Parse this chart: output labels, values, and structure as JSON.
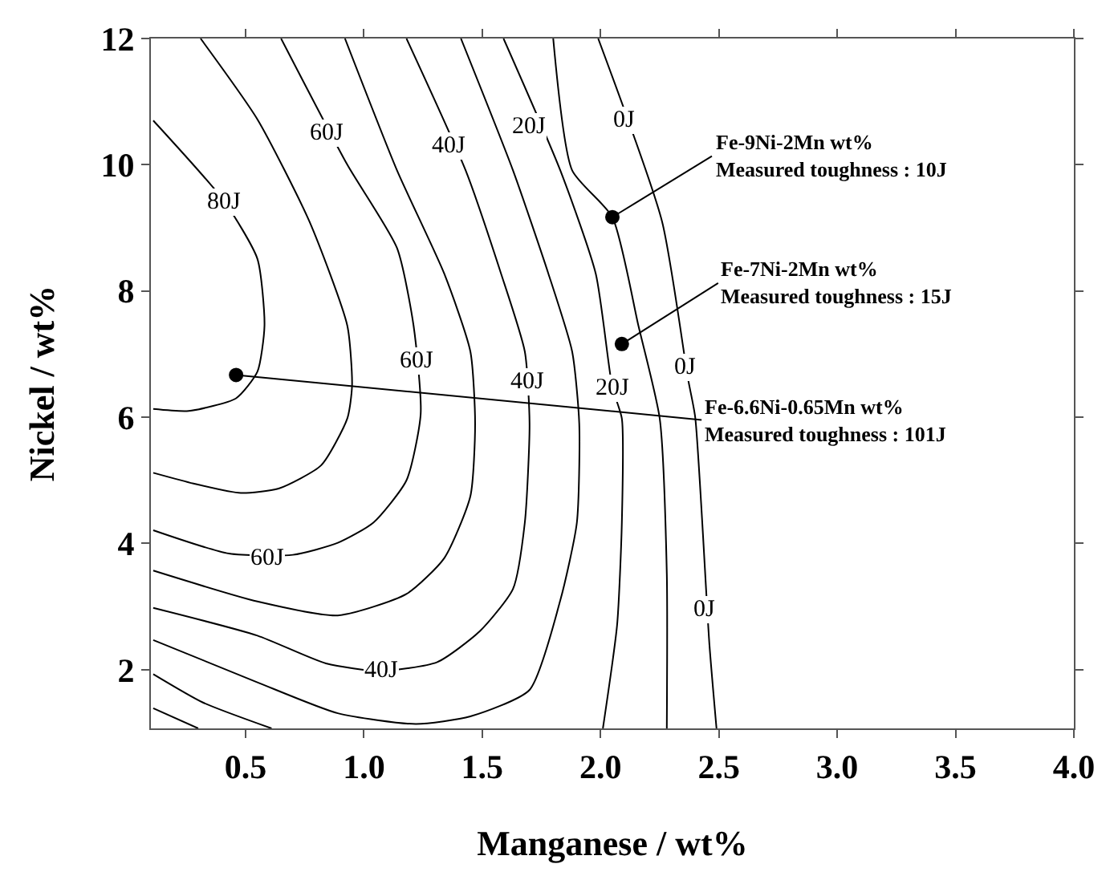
{
  "chart_data": {
    "type": "line",
    "xlabel": "Manganese / wt%",
    "ylabel": "Nickel / wt%",
    "xlim": [
      0.1,
      4.0
    ],
    "ylim": [
      1.07,
      12
    ],
    "xticks": [
      0.5,
      {
        "value": 1.0,
        "label": "1.0"
      },
      1.5,
      {
        "value": 2.0,
        "label": "2.0"
      },
      2.5,
      {
        "value": 3.0,
        "label": "3.0"
      },
      3.5,
      {
        "value": 4.0,
        "label": "4.0"
      }
    ],
    "yticks": [
      2,
      4,
      6,
      8,
      10,
      12
    ],
    "line_style": "solid",
    "marker": "none",
    "series": [
      {
        "color": "#000000",
        "x": [
          0.11,
          0.41,
          0.55,
          0.58,
          0.55,
          0.46,
          0.26,
          0.11
        ],
        "values": [
          10.7,
          9.42,
          8.51,
          7.45,
          6.72,
          6.3,
          6.1,
          6.13
        ]
      },
      {
        "color": "#000000",
        "x": [
          0.31,
          0.55,
          0.77,
          0.93,
          0.95,
          0.93,
          0.82,
          0.64,
          0.48,
          0.28,
          0.11
        ],
        "values": [
          12,
          10.72,
          9.1,
          7.45,
          6.5,
          5.98,
          5.24,
          4.87,
          4.8,
          4.95,
          5.12
        ]
      },
      {
        "color": "#000000",
        "x": [
          0.65,
          0.93,
          1.14,
          1.21,
          1.24,
          1.18,
          1.04,
          0.89,
          0.7,
          0.43,
          0.11
        ],
        "values": [
          12,
          10,
          8.68,
          7.45,
          6.05,
          5.0,
          4.33,
          4.01,
          3.82,
          3.84,
          4.21
        ]
      },
      {
        "color": "#000000",
        "x": [
          0.92,
          1.14,
          1.34,
          1.45,
          1.47,
          1.45,
          1.34,
          1.18,
          0.89,
          0.55,
          0.11
        ],
        "values": [
          12,
          9.91,
          8.27,
          7.04,
          5.9,
          4.75,
          3.77,
          3.2,
          2.86,
          3.08,
          3.57
        ]
      },
      {
        "color": "#000000",
        "x": [
          1.18,
          1.43,
          1.58,
          1.68,
          1.7,
          1.68,
          1.63,
          1.49,
          1.31,
          1.07,
          0.84,
          0.55,
          0.11
        ],
        "values": [
          12,
          9.91,
          8.27,
          7.04,
          5.9,
          4.33,
          3.28,
          2.61,
          2.12,
          1.98,
          2.1,
          2.54,
          2.98
        ]
      },
      {
        "color": "#000000",
        "x": [
          1.41,
          1.63,
          1.78,
          1.88,
          1.91,
          1.9,
          1.83,
          1.7,
          1.45,
          1.22,
          0.89,
          0.55,
          0.11
        ],
        "values": [
          12,
          9.91,
          8.27,
          7.04,
          5.9,
          4.33,
          3.1,
          1.68,
          1.26,
          1.14,
          1.31,
          1.8,
          2.47
        ]
      },
      {
        "color": "#000000",
        "x": [
          1.59,
          1.83,
          1.98,
          2.05,
          2.09,
          2.09,
          2.07,
          2.01
        ],
        "values": [
          12,
          9.91,
          8.27,
          6.47,
          5.98,
          4.33,
          2.71,
          1.07
        ]
      },
      {
        "color": "#000000",
        "x": [
          0.11,
          0.32,
          0.61
        ],
        "values": [
          1.93,
          1.48,
          1.07
        ]
      },
      {
        "color": "#000000",
        "x": [
          1.8,
          1.88,
          2.05,
          2.16,
          2.25,
          2.28,
          2.28
        ],
        "values": [
          12,
          9.91,
          9.17,
          7.45,
          5.98,
          3.52,
          1.07
        ]
      },
      {
        "color": "#000000",
        "x": [
          0.11,
          0.3
        ],
        "values": [
          1.39,
          1.07
        ]
      },
      {
        "color": "#000000",
        "x": [
          1.99,
          2.26,
          2.37,
          2.4,
          2.46,
          2.49
        ],
        "values": [
          12,
          9.1,
          6.6,
          6.0,
          2.4,
          1.07
        ]
      },
      {
        "type": "scatter",
        "marker": "circle",
        "color": "#000000",
        "x": [
          0.46,
          2.05,
          2.09
        ],
        "values": [
          6.67,
          9.17,
          7.16
        ]
      }
    ],
    "annotations": [
      {
        "text": "80J",
        "x": 0.41,
        "y": 9.42
      },
      {
        "text": "60J",
        "x": 0.84,
        "y": 10.5
      },
      {
        "text": "40J",
        "x": 1.36,
        "y": 10.3
      },
      {
        "text": "20J",
        "x": 1.7,
        "y": 10.6
      },
      {
        "text": "0J",
        "x": 2.1,
        "y": 10.7
      },
      {
        "text": "60J",
        "x": 1.22,
        "y": 6.9
      },
      {
        "text": "40J",
        "x": 1.69,
        "y": 6.55
      },
      {
        "text": "20J",
        "x": 2.05,
        "y": 6.47
      },
      {
        "text": "0J",
        "x": 2.36,
        "y": 6.8
      },
      {
        "text": "60J",
        "x": 0.59,
        "y": 3.77
      },
      {
        "text": "40J",
        "x": 1.07,
        "y": 1.98
      },
      {
        "text": "0J",
        "x": 2.44,
        "y": 2.96
      },
      {
        "text": "Fe-9Ni-2Mn wt%\nMeasured toughness : 10J",
        "x": 2.05,
        "y": 9.17
      },
      {
        "text": "Fe-7Ni-2Mn wt%\nMeasured toughness : 15J",
        "x": 2.09,
        "y": 7.16
      },
      {
        "text": "Fe-6.6Ni-0.65Mn wt%\nMeasured toughness : 101J",
        "x": 0.46,
        "y": 6.67
      }
    ]
  }
}
